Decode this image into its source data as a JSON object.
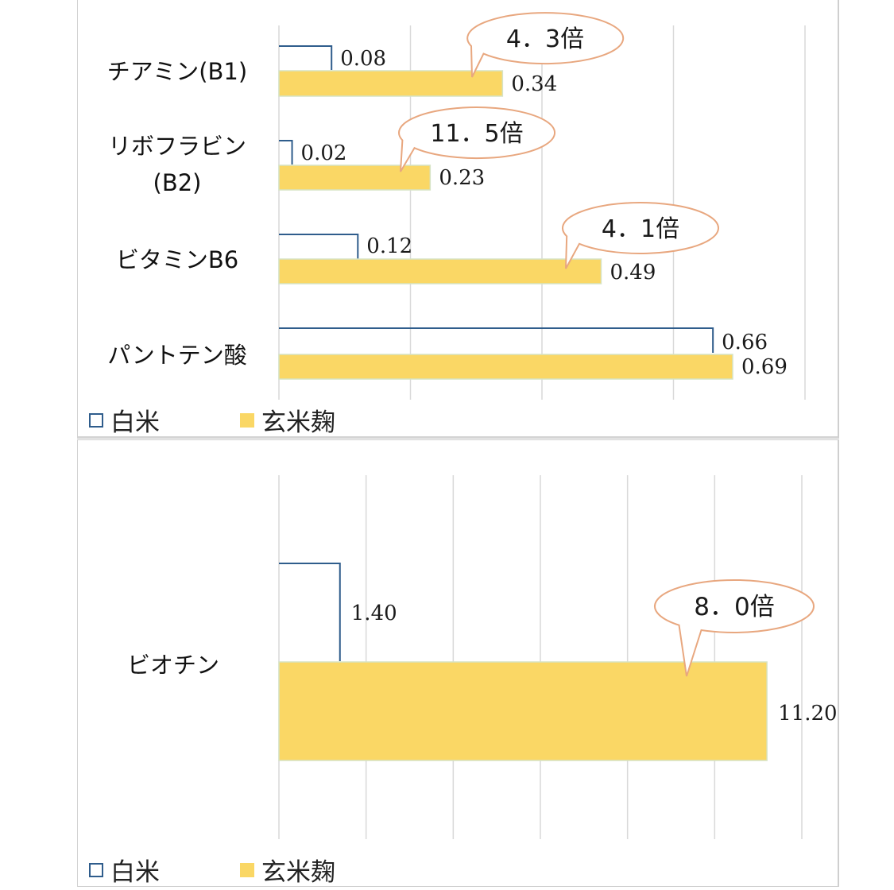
{
  "chart_data": [
    {
      "type": "bar",
      "orientation": "horizontal",
      "categories": [
        "チアミン(B1)",
        "リボフラビン(B2)",
        "ビタミンB6",
        "パントテン酸"
      ],
      "category_lines": [
        [
          "チアミン(B1)"
        ],
        [
          "リボフラビン",
          "(B2)"
        ],
        [
          "ビタミンB6"
        ],
        [
          "パントテン酸"
        ]
      ],
      "series": [
        {
          "name": "白米",
          "values": [
            0.08,
            0.02,
            0.12,
            0.66
          ],
          "labels": [
            "0.08",
            "0.02",
            "0.12",
            "0.66"
          ],
          "style": "outline",
          "color": "#2f5d8c"
        },
        {
          "name": "玄米麹",
          "values": [
            0.34,
            0.23,
            0.49,
            0.69
          ],
          "labels": [
            "0.34",
            "0.23",
            "0.49",
            "0.69"
          ],
          "style": "fill",
          "color": "#fad765"
        }
      ],
      "callouts": [
        "4.3倍",
        "11.5倍",
        "4.1倍",
        ""
      ],
      "callout_texts": [
        "4．3倍",
        "11．5倍",
        "4．1倍",
        ""
      ],
      "xlim": [
        0,
        0.8
      ],
      "grid": true,
      "legend": "bottom-left"
    },
    {
      "type": "bar",
      "orientation": "horizontal",
      "categories": [
        "ビオチン"
      ],
      "category_lines": [
        [
          "ビオチン"
        ]
      ],
      "series": [
        {
          "name": "白米",
          "values": [
            1.4
          ],
          "labels": [
            "1.40"
          ],
          "style": "outline",
          "color": "#2f5d8c"
        },
        {
          "name": "玄米麹",
          "values": [
            11.2
          ],
          "labels": [
            "11.20"
          ],
          "style": "fill",
          "color": "#fad765"
        }
      ],
      "callouts": [
        "8.0倍"
      ],
      "callout_texts": [
        "8．0倍"
      ],
      "xlim": [
        0,
        12
      ],
      "grid": true,
      "legend": "bottom-left"
    }
  ],
  "legend": [
    {
      "name": "白米",
      "style": "outline"
    },
    {
      "name": "玄米麹",
      "style": "fill"
    }
  ]
}
